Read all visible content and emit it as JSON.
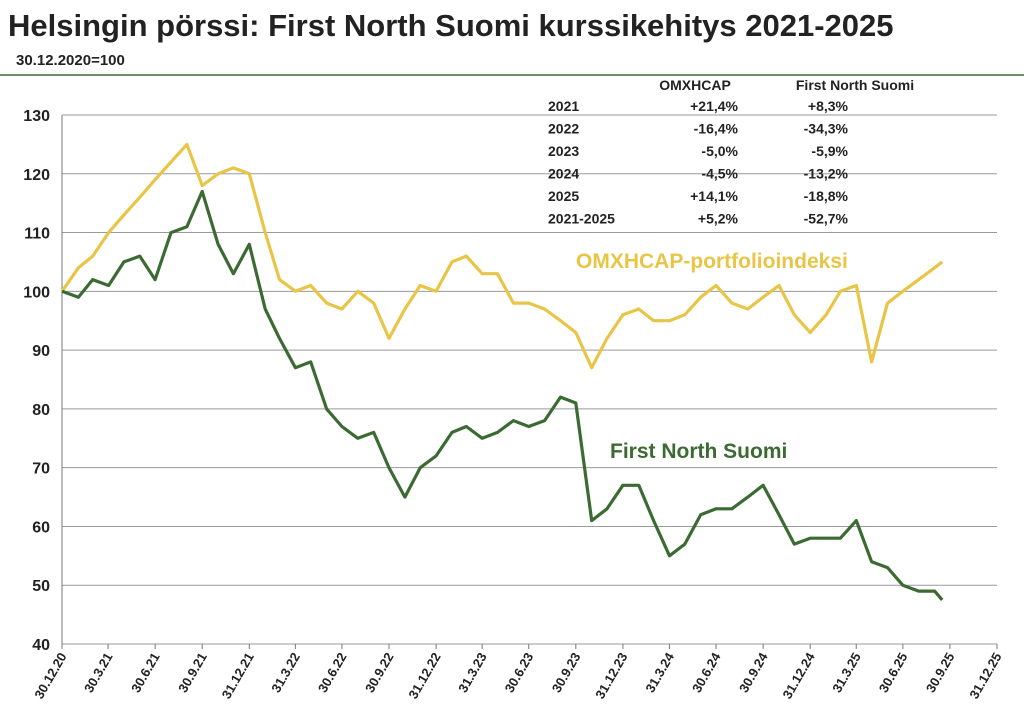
{
  "chart_data": {
    "type": "line",
    "title": "Helsingin pörssi: First North Suomi kurssikehitys 2021-2025",
    "subtitle": "30.12.2020=100",
    "x": [
      "30.12.20",
      "31.1.21",
      "28.2.21",
      "31.3.21",
      "30.4.21",
      "31.5.21",
      "30.6.21",
      "31.7.21",
      "31.8.21",
      "30.9.21",
      "31.10.21",
      "30.11.21",
      "31.12.21",
      "31.1.22",
      "28.2.22",
      "31.3.22",
      "30.4.22",
      "31.5.22",
      "30.6.22",
      "31.7.22",
      "31.8.22",
      "30.9.22",
      "31.10.22",
      "30.11.22",
      "31.12.22",
      "31.1.23",
      "28.2.23",
      "31.3.23",
      "30.4.23",
      "31.5.23",
      "30.6.23",
      "31.7.23",
      "31.8.23",
      "30.9.23",
      "31.10.23",
      "30.11.23",
      "31.12.23",
      "31.1.24",
      "29.2.24",
      "31.3.24",
      "30.4.24",
      "31.5.24",
      "30.6.24",
      "31.7.24",
      "31.8.24",
      "30.9.24",
      "31.10.24",
      "30.11.24",
      "31.12.24",
      "31.1.25",
      "28.2.25",
      "31.3.25",
      "30.4.25",
      "31.5.25",
      "30.6.25",
      "31.7.25",
      "31.8.25",
      "15.9.25"
    ],
    "series": [
      {
        "name": "OMXHCAP-portfolioindeksi",
        "color": "#e9c547",
        "values": [
          100,
          104,
          106,
          110,
          113,
          116,
          119,
          122,
          125,
          118,
          120,
          121,
          120,
          110,
          102,
          100,
          101,
          98,
          97,
          100,
          98,
          92,
          97,
          101,
          100,
          105,
          106,
          103,
          103,
          98,
          98,
          97,
          95,
          93,
          87,
          92,
          96,
          97,
          95,
          95,
          96,
          99,
          101,
          98,
          97,
          99,
          101,
          96,
          93,
          96,
          100,
          101,
          88,
          98,
          100,
          102,
          104,
          105
        ]
      },
      {
        "name": "First North Suomi",
        "color": "#3b6b33",
        "values": [
          100,
          99,
          102,
          101,
          105,
          106,
          102,
          110,
          111,
          117,
          108,
          103,
          108,
          97,
          92,
          87,
          88,
          80,
          77,
          75,
          76,
          70,
          65,
          70,
          72,
          76,
          77,
          75,
          76,
          78,
          77,
          78,
          82,
          81,
          61,
          63,
          67,
          67,
          61,
          55,
          57,
          62,
          63,
          63,
          65,
          67,
          62,
          57,
          58,
          58,
          58,
          61,
          54,
          53,
          50,
          49,
          49,
          47.5
        ]
      }
    ],
    "xlim": [
      "30.12.20",
      "31.12.25"
    ],
    "xticks": [
      "30.12.20",
      "30.3.21",
      "30.6.21",
      "30.9.21",
      "31.12.21",
      "31.3.22",
      "30.6.22",
      "30.9.22",
      "31.12.22",
      "31.3.23",
      "30.6.23",
      "30.9.23",
      "31.12.23",
      "31.3.24",
      "30.6.24",
      "30.9.24",
      "31.12.24",
      "31.3.25",
      "30.6.25",
      "30.9.25",
      "31.12.25"
    ],
    "ylim": [
      40,
      130
    ],
    "yticks": [
      40,
      50,
      60,
      70,
      80,
      90,
      100,
      110,
      120,
      130
    ],
    "grid": true,
    "table": {
      "columns": [
        "OMXHCAP",
        "First North Suomi"
      ],
      "rows": [
        [
          "2021",
          "+21,4%",
          "+8,3%"
        ],
        [
          "2022",
          "-16,4%",
          "-34,3%"
        ],
        [
          "2023",
          "-5,0%",
          "-5,9%"
        ],
        [
          "2024",
          "-4,5%",
          "-13,2%"
        ],
        [
          "2025",
          "+14,1%",
          "-18,8%"
        ],
        [
          "2021-2025",
          "+5,2%",
          "-52,7%"
        ]
      ]
    }
  }
}
